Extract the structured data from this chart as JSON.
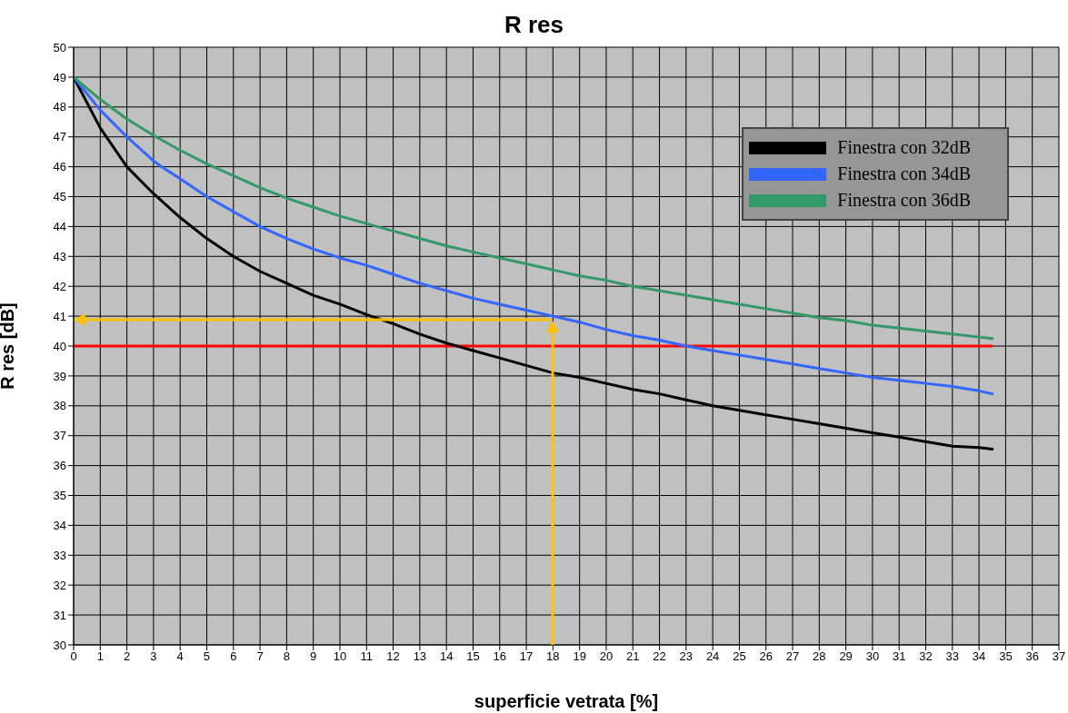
{
  "chart_data": {
    "type": "line",
    "title": "R res",
    "xlabel": "superficie vetrata [%]",
    "ylabel": "R res [dB]",
    "xlim": [
      0,
      37
    ],
    "xticks": [
      0,
      1,
      2,
      3,
      4,
      5,
      6,
      7,
      8,
      9,
      10,
      11,
      12,
      13,
      14,
      15,
      16,
      17,
      18,
      19,
      20,
      21,
      22,
      23,
      24,
      25,
      26,
      27,
      28,
      29,
      30,
      31,
      32,
      33,
      34,
      35,
      36,
      37
    ],
    "ylim": [
      30,
      50
    ],
    "yticks": [
      30,
      31,
      32,
      33,
      34,
      35,
      36,
      37,
      38,
      39,
      40,
      41,
      42,
      43,
      44,
      45,
      46,
      47,
      48,
      49,
      50
    ],
    "grid": true,
    "legend": "top right",
    "marker": "none",
    "line_style": "solid",
    "ref_lines": [
      {
        "axis": "y",
        "value": 40,
        "color": "#ff0000"
      }
    ],
    "series": [
      {
        "name": "Finestra con 32dB",
        "color": "#000000",
        "x": [
          0,
          1,
          2,
          3,
          4,
          5,
          6,
          7,
          8,
          9,
          10,
          11,
          12,
          13,
          14,
          15,
          16,
          17,
          18,
          19,
          20,
          21,
          22,
          23,
          24,
          25,
          26,
          27,
          28,
          29,
          30,
          31,
          32,
          33,
          34,
          34.5
        ],
        "values": [
          49,
          47.3,
          46.0,
          45.1,
          44.3,
          43.6,
          43.0,
          42.5,
          42.1,
          41.7,
          41.4,
          41.05,
          40.75,
          40.4,
          40.1,
          39.85,
          39.6,
          39.35,
          39.1,
          38.95,
          38.75,
          38.55,
          38.4,
          38.2,
          38.0,
          37.85,
          37.7,
          37.55,
          37.4,
          37.25,
          37.1,
          36.95,
          36.8,
          36.65,
          36.6,
          36.55
        ]
      },
      {
        "name": "Finestra con 34dB",
        "color": "#3366ff",
        "x": [
          0,
          1,
          2,
          3,
          3.3,
          4,
          5,
          6,
          7,
          8,
          9,
          10,
          11,
          12,
          13,
          14,
          15,
          16,
          17,
          18,
          19,
          20,
          21,
          22,
          23,
          24,
          25,
          26,
          27,
          28,
          29,
          30,
          31,
          32,
          33,
          34,
          34.5
        ],
        "values": [
          49,
          47.9,
          47.0,
          46.2,
          46.0,
          45.6,
          45.0,
          44.5,
          44.0,
          43.6,
          43.25,
          42.95,
          42.7,
          42.4,
          42.1,
          41.85,
          41.6,
          41.4,
          41.2,
          41.0,
          40.8,
          40.55,
          40.35,
          40.2,
          40.0,
          39.85,
          39.7,
          39.55,
          39.4,
          39.25,
          39.1,
          38.95,
          38.85,
          38.75,
          38.65,
          38.5,
          38.4
        ]
      },
      {
        "name": "Finestra con 36dB",
        "color": "#339966",
        "x": [
          0,
          1,
          2,
          3,
          4,
          5,
          6,
          7,
          8,
          9,
          10,
          11,
          12,
          13,
          14,
          15,
          16,
          17,
          18,
          19,
          20,
          21,
          22,
          23,
          24,
          25,
          26,
          27,
          28,
          29,
          30,
          31,
          32,
          33,
          34,
          34.5
        ],
        "values": [
          49,
          48.25,
          47.6,
          47.05,
          46.55,
          46.1,
          45.7,
          45.3,
          44.95,
          44.65,
          44.35,
          44.1,
          43.85,
          43.6,
          43.35,
          43.15,
          42.95,
          42.75,
          42.55,
          42.35,
          42.2,
          42.0,
          41.85,
          41.7,
          41.55,
          41.4,
          41.25,
          41.1,
          40.95,
          40.85,
          40.7,
          40.6,
          40.5,
          40.4,
          40.3,
          40.25
        ]
      }
    ]
  }
}
